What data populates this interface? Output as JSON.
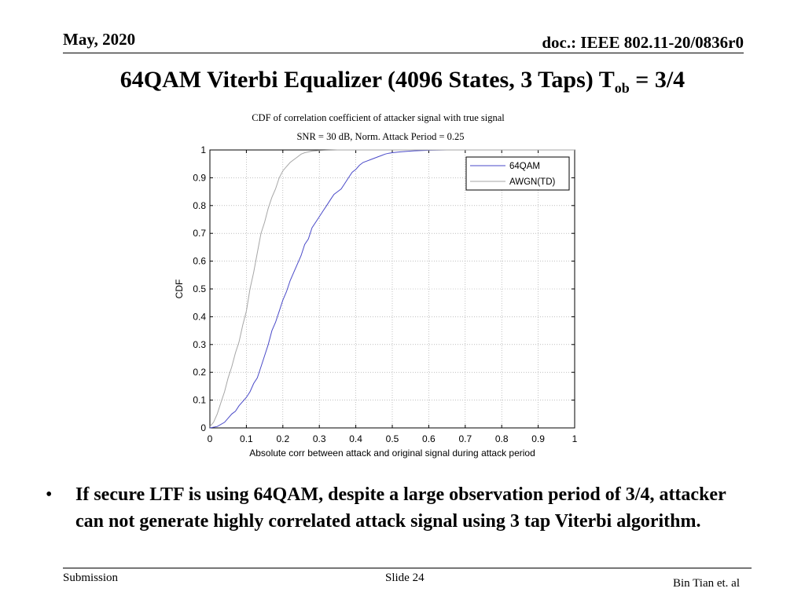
{
  "header": {
    "date": "May, 2020",
    "doc": "doc.: IEEE 802.11-20/0836r0"
  },
  "slide": {
    "title_main": "64QAM Viterbi Equalizer (4096 States, 3 Taps) T",
    "title_sub": "ob",
    "title_tail": " = 3/4"
  },
  "chart_data": {
    "type": "line",
    "title": "CDF of correlation coefficient of attacker signal with true signal",
    "subtitle": "SNR = 30 dB, Norm. Attack Period = 0.25",
    "xlabel": "Absolute corr between attack and original signal during attack period",
    "ylabel": "CDF",
    "xlim": [
      0,
      1
    ],
    "ylim": [
      0,
      1
    ],
    "xticks": [
      "0",
      "0.1",
      "0.2",
      "0.3",
      "0.4",
      "0.5",
      "0.6",
      "0.7",
      "0.8",
      "0.9",
      "1"
    ],
    "yticks": [
      "0",
      "0.1",
      "0.2",
      "0.3",
      "0.4",
      "0.5",
      "0.6",
      "0.7",
      "0.8",
      "0.9",
      "1"
    ],
    "grid": true,
    "legend_position": "top-right",
    "series": [
      {
        "name": "64QAM",
        "color": "#4a4ac8",
        "x": [
          0,
          0.02,
          0.04,
          0.06,
          0.07,
          0.08,
          0.1,
          0.11,
          0.12,
          0.13,
          0.14,
          0.15,
          0.16,
          0.17,
          0.18,
          0.19,
          0.2,
          0.21,
          0.22,
          0.23,
          0.24,
          0.25,
          0.26,
          0.27,
          0.28,
          0.29,
          0.3,
          0.31,
          0.32,
          0.33,
          0.34,
          0.35,
          0.36,
          0.37,
          0.38,
          0.39,
          0.4,
          0.41,
          0.42,
          0.43,
          0.44,
          0.45,
          0.46,
          0.47,
          0.48,
          0.49,
          0.5,
          0.52,
          0.54,
          0.56,
          0.6,
          0.65,
          0.7,
          1.0
        ],
        "y": [
          0,
          0.005,
          0.02,
          0.05,
          0.06,
          0.08,
          0.11,
          0.13,
          0.16,
          0.18,
          0.22,
          0.26,
          0.3,
          0.35,
          0.38,
          0.42,
          0.46,
          0.49,
          0.53,
          0.56,
          0.59,
          0.62,
          0.66,
          0.68,
          0.72,
          0.74,
          0.76,
          0.78,
          0.8,
          0.82,
          0.84,
          0.85,
          0.86,
          0.88,
          0.9,
          0.92,
          0.93,
          0.945,
          0.955,
          0.96,
          0.965,
          0.97,
          0.975,
          0.98,
          0.985,
          0.988,
          0.99,
          0.993,
          0.995,
          0.997,
          0.999,
          1.0,
          1.0,
          1.0
        ]
      },
      {
        "name": "AWGN(TD)",
        "color": "#a6a6a6",
        "x": [
          0,
          0.01,
          0.02,
          0.03,
          0.04,
          0.05,
          0.06,
          0.07,
          0.08,
          0.09,
          0.1,
          0.11,
          0.12,
          0.13,
          0.14,
          0.15,
          0.16,
          0.17,
          0.18,
          0.19,
          0.2,
          0.21,
          0.22,
          0.23,
          0.24,
          0.25,
          0.26,
          0.27,
          0.28,
          0.3,
          0.32,
          0.35,
          0.4,
          0.5,
          1.0
        ],
        "y": [
          0.005,
          0.02,
          0.05,
          0.09,
          0.13,
          0.18,
          0.22,
          0.27,
          0.31,
          0.37,
          0.42,
          0.5,
          0.56,
          0.63,
          0.7,
          0.74,
          0.79,
          0.83,
          0.86,
          0.9,
          0.925,
          0.94,
          0.955,
          0.965,
          0.975,
          0.985,
          0.99,
          0.993,
          0.996,
          0.998,
          0.999,
          1.0,
          1.0,
          1.0,
          1.0
        ]
      }
    ]
  },
  "bullet": {
    "symbol": "•",
    "text": "If secure LTF is using 64QAM, despite a large observation period of 3/4, attacker can not generate highly correlated attack signal using 3 tap Viterbi algorithm."
  },
  "footer": {
    "submission": "Submission",
    "slide": "Slide 24",
    "author": "Bin Tian et. al"
  }
}
